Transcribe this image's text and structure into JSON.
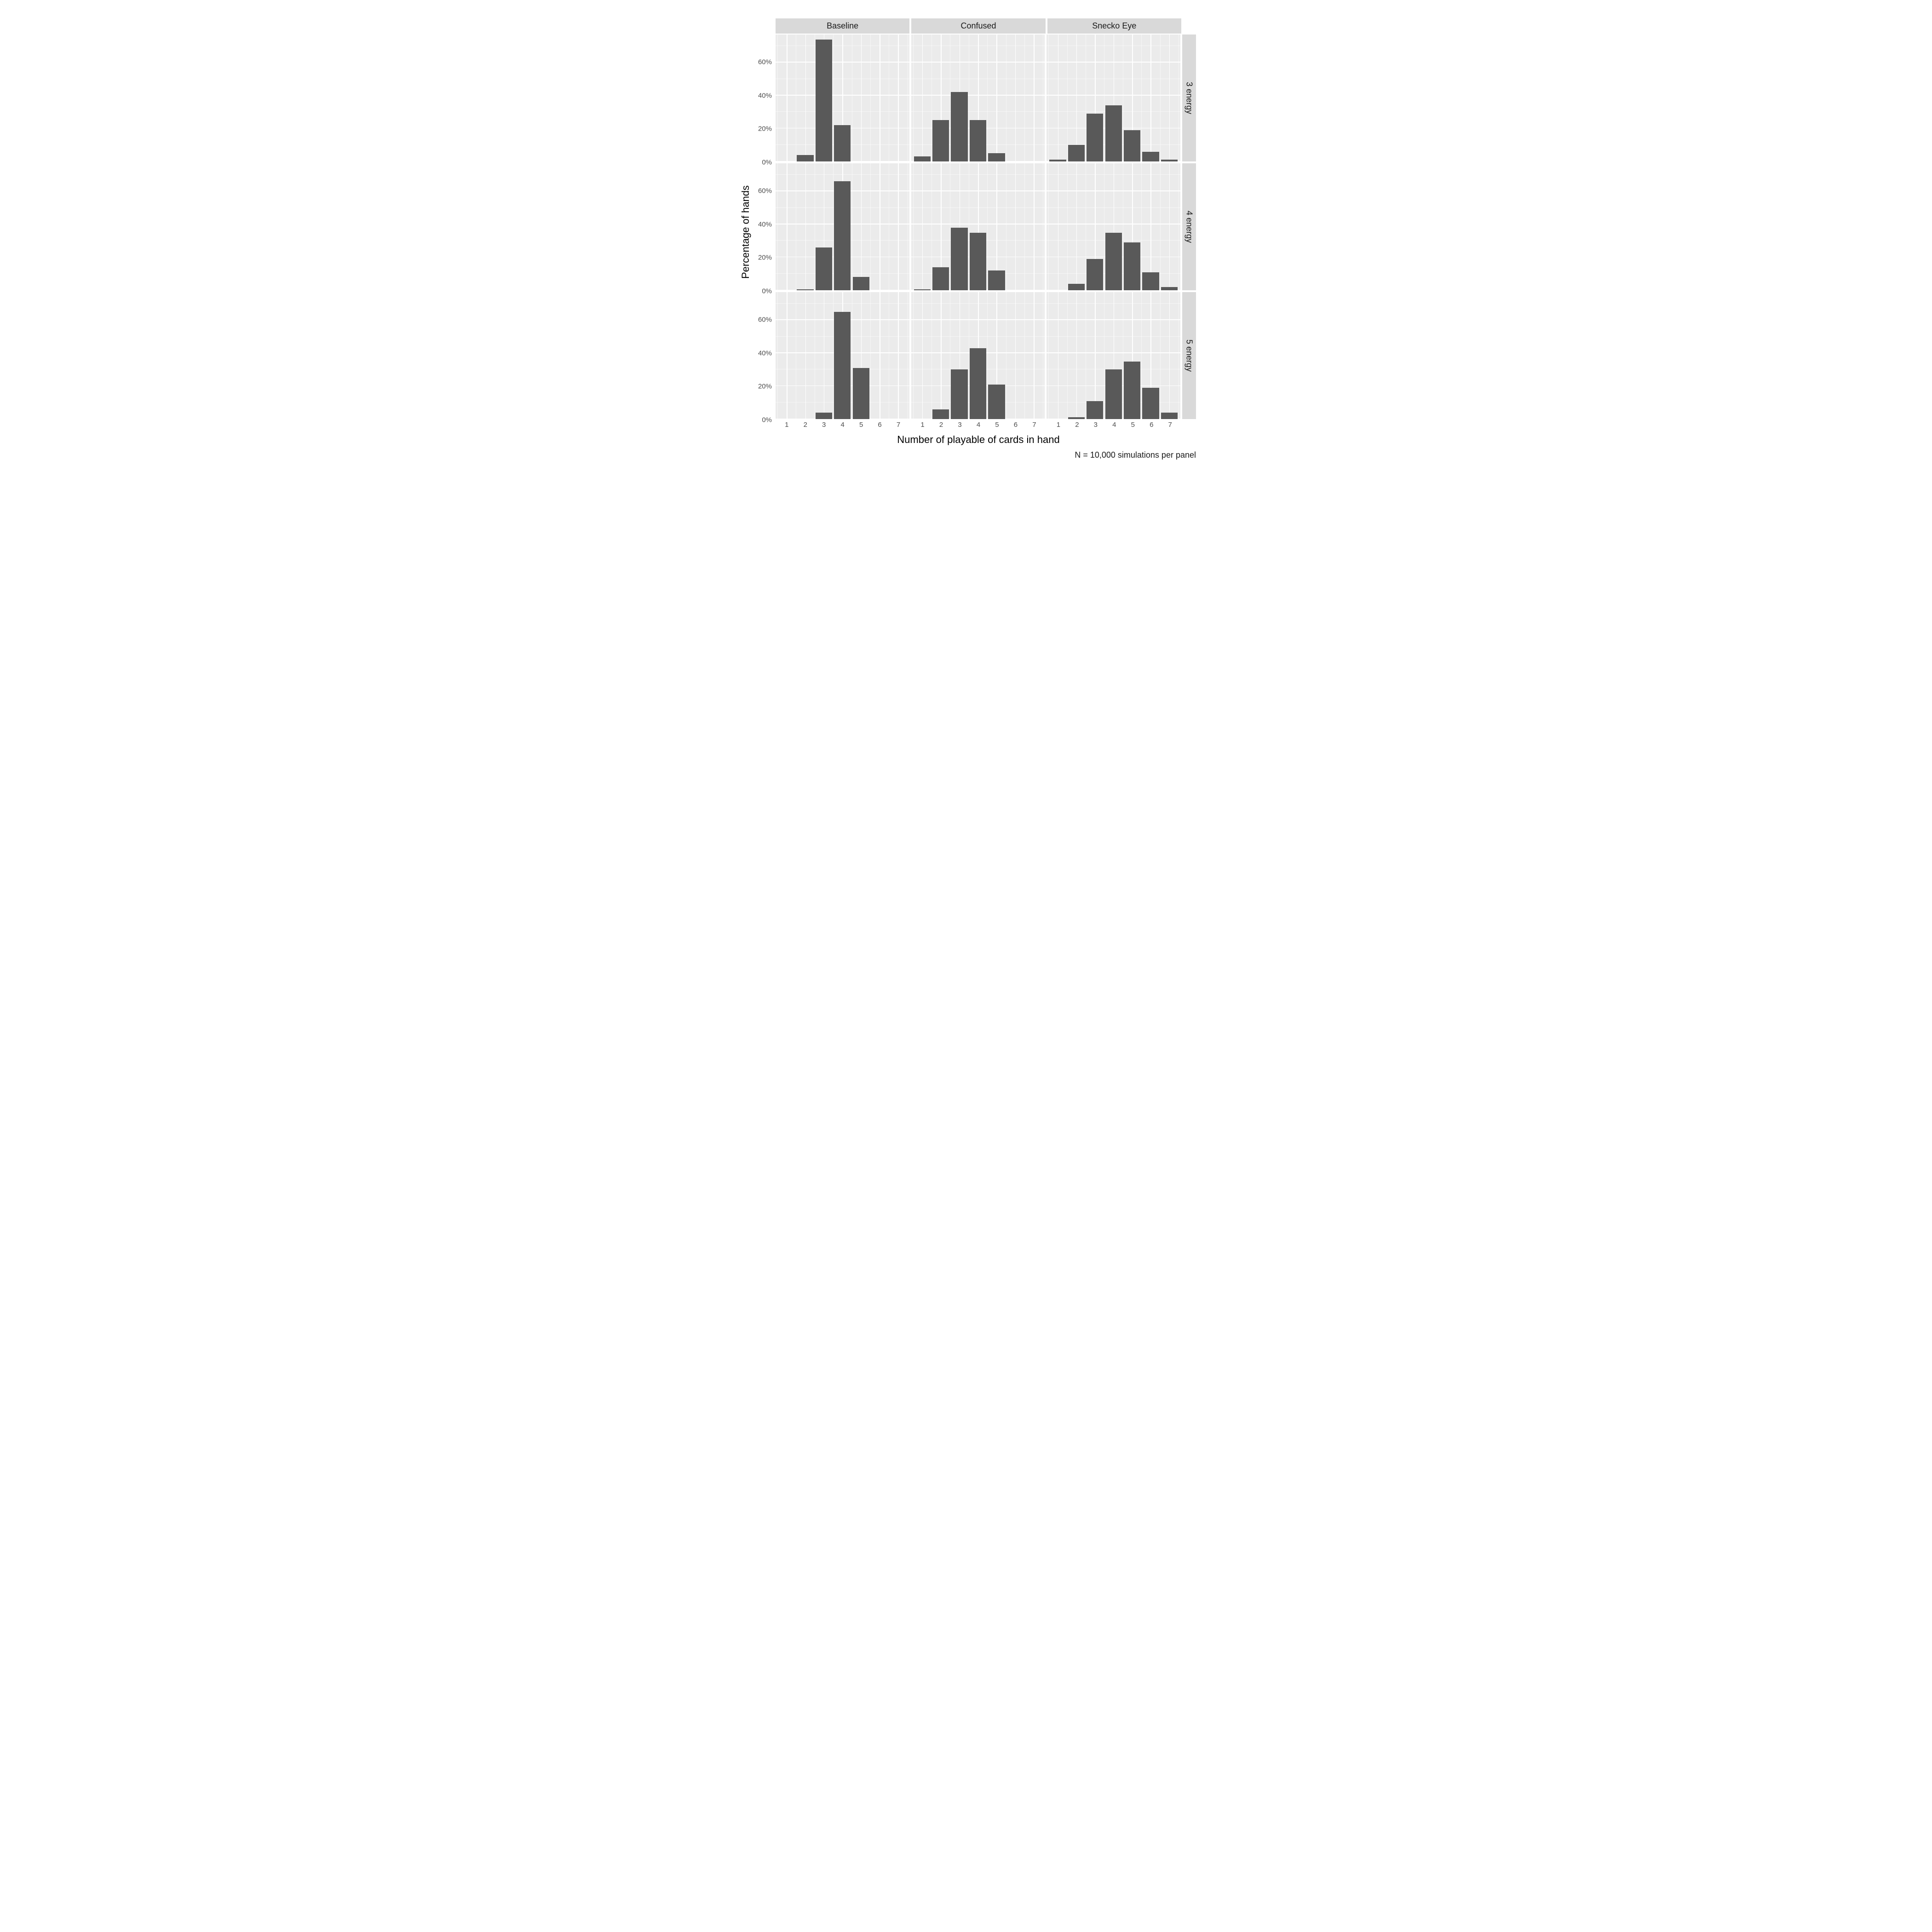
{
  "chart": {
    "type": "faceted-bar-histogram",
    "x_title": "Number of playable of cards in hand",
    "y_title": "Percentage of hands",
    "caption": "N = 10,000 simulations per panel",
    "panel_bg": "#ebebeb",
    "strip_bg": "#d9d9d9",
    "grid_color": "#ffffff",
    "bar_color": "#595959",
    "text_color": "#1a1a1a",
    "tick_color": "#4d4d4d",
    "title_fontsize": 22,
    "strip_fontsize": 18,
    "tick_fontsize": 15,
    "caption_fontsize": 18,
    "x_categories": [
      1,
      2,
      3,
      4,
      5,
      6,
      7
    ],
    "x_ticks": [
      1,
      2,
      3,
      4,
      5,
      6,
      7
    ],
    "x_lim": [
      0.4,
      7.6
    ],
    "y_lim": [
      0,
      77
    ],
    "y_ticks": [
      0,
      20,
      40,
      60
    ],
    "y_tick_labels": [
      "0%",
      "20%",
      "40%",
      "60%"
    ],
    "y_minor_ticks": [
      10,
      30,
      50,
      70
    ],
    "bar_width": 0.9,
    "col_facets": [
      "Baseline",
      "Confused",
      "Snecko Eye"
    ],
    "row_facets": [
      "3 energy",
      "4 energy",
      "5 energy"
    ],
    "panels": [
      [
        {
          "values": [
            0,
            4,
            74,
            22,
            0,
            0,
            0
          ]
        },
        {
          "values": [
            3,
            25,
            42,
            25,
            5,
            0,
            0
          ]
        },
        {
          "values": [
            1,
            10,
            29,
            34,
            19,
            6,
            1
          ]
        }
      ],
      [
        {
          "values": [
            0,
            0.5,
            26,
            66,
            8,
            0,
            0
          ]
        },
        {
          "values": [
            0.5,
            14,
            38,
            35,
            12,
            0,
            0
          ]
        },
        {
          "values": [
            0,
            4,
            19,
            35,
            29,
            11,
            2
          ]
        }
      ],
      [
        {
          "values": [
            0,
            0,
            4,
            65,
            31,
            0,
            0
          ]
        },
        {
          "values": [
            0,
            6,
            30,
            43,
            21,
            0,
            0
          ]
        },
        {
          "values": [
            0,
            1,
            11,
            30,
            35,
            19,
            4
          ]
        }
      ]
    ]
  }
}
